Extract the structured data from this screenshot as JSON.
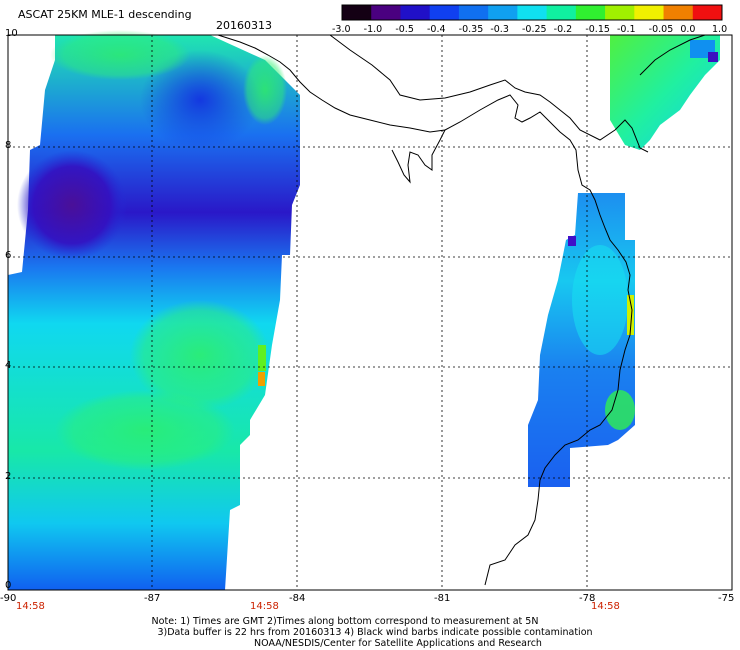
{
  "title": "ASCAT 25KM MLE-1 descending",
  "date": "20160313",
  "colorbar": {
    "labels": [
      "-3.0",
      "-1.0",
      "-0.5",
      "-0.4",
      "-0.35",
      "-0.3",
      "-0.25",
      "-0.2",
      "-0.15",
      "-0.1",
      "-0.05",
      "0.0",
      "1.0"
    ],
    "colors": [
      "#140014",
      "#4a0080",
      "#2010c8",
      "#1040f0",
      "#1070f0",
      "#10a0f0",
      "#10e0f0",
      "#10f0a0",
      "#30f030",
      "#a0f000",
      "#f0f000",
      "#f08000",
      "#f01010"
    ]
  },
  "axes": {
    "lat_labels": [
      "10",
      "8",
      "6",
      "4",
      "2",
      "0"
    ],
    "lon_labels": [
      "-90",
      "-87",
      "-84",
      "-81",
      "-78",
      "-75"
    ]
  },
  "times": [
    "14:58",
    "14:58",
    "14:58"
  ],
  "notes": {
    "line1": "Note: 1) Times are GMT 2)Times along bottom correspond to measurement at 5N",
    "line2": "3)Data buffer is 22 hrs from 20160313 4) Black wind barbs indicate possible contamination",
    "line3": "NOAA/NESDIS/Center for Satellite Applications and Research"
  }
}
